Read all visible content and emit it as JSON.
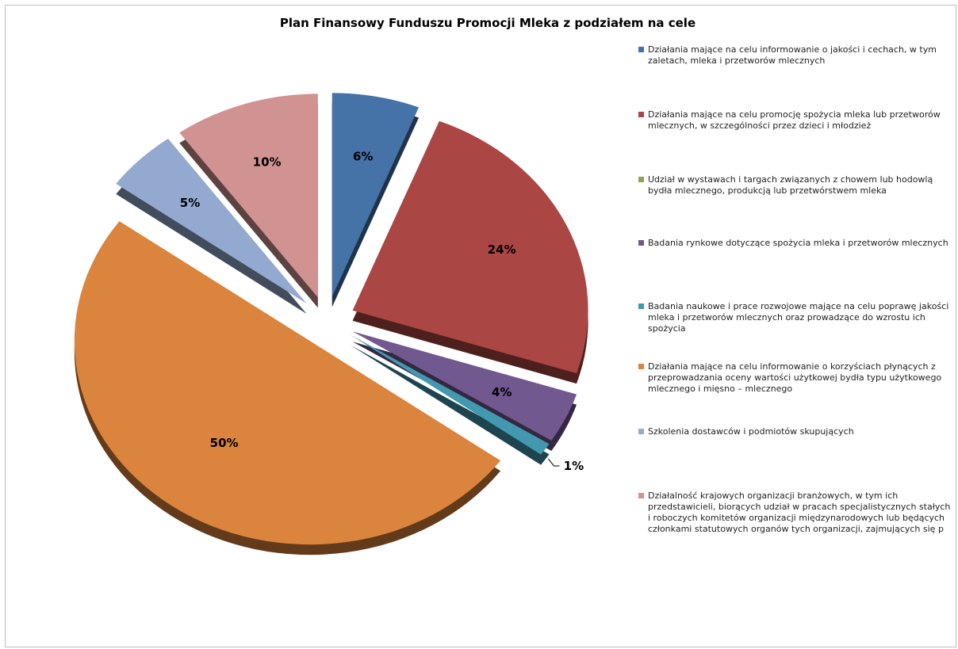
{
  "chart_data": {
    "type": "pie",
    "title": "Plan Finansowy Funduszu Promocji Mleka z podziałem na cele",
    "legend_position": "right",
    "exploded": true,
    "style": "3d",
    "slices": [
      {
        "name": "Działania mające na celu informowanie o jakości i cechach, w tym zaletach, mleka i przetworów mlecznych",
        "value": 6,
        "label": "6%",
        "color": "#4572A7"
      },
      {
        "name": "Działania mające na celu promocję spożycia mleka lub przetworów mlecznych, w szczególności przez dzieci i młodzież",
        "value": 24,
        "label": "24%",
        "color": "#AA4643"
      },
      {
        "name": "Udział w wystawach i targach związanych z chowem lub hodowlą bydła mlecznego, produkcją lub przetwórstwem mleka",
        "value": 0,
        "label": "",
        "color": "#89A54E"
      },
      {
        "name": "Badania rynkowe dotyczące spożycia mleka i przetworów mlecznych",
        "value": 4,
        "label": "4%",
        "color": "#71588F"
      },
      {
        "name": "Badania naukowe i prace rozwojowe mające na celu poprawę jakości mleka i przetworów mlecznych oraz prowadzące do wzrostu ich spożycia",
        "value": 1,
        "label": "1%",
        "color": "#4198AF"
      },
      {
        "name": "Działania mające na celu informowanie o korzyściach płynących z przeprowadzania oceny wartości użytkowej bydła typu użytkowego mlecznego i mięsno – mlecznego",
        "value": 50,
        "label": "50%",
        "color": "#DB843D"
      },
      {
        "name": "Szkolenia dostawców i podmiotów skupujących",
        "value": 5,
        "label": "5%",
        "color": "#93A9CF"
      },
      {
        "name": "Działalność krajowych organizacji branżowych, w tym ich przedstawicieli, biorących udział w pracach specjalistycznych stałych i roboczych komitetów organizacji międzynarodowych lub będących członkami statutowych organów tych organizacji, zajmujących się p",
        "value": 10,
        "label": "10%",
        "color": "#D19392"
      }
    ]
  }
}
